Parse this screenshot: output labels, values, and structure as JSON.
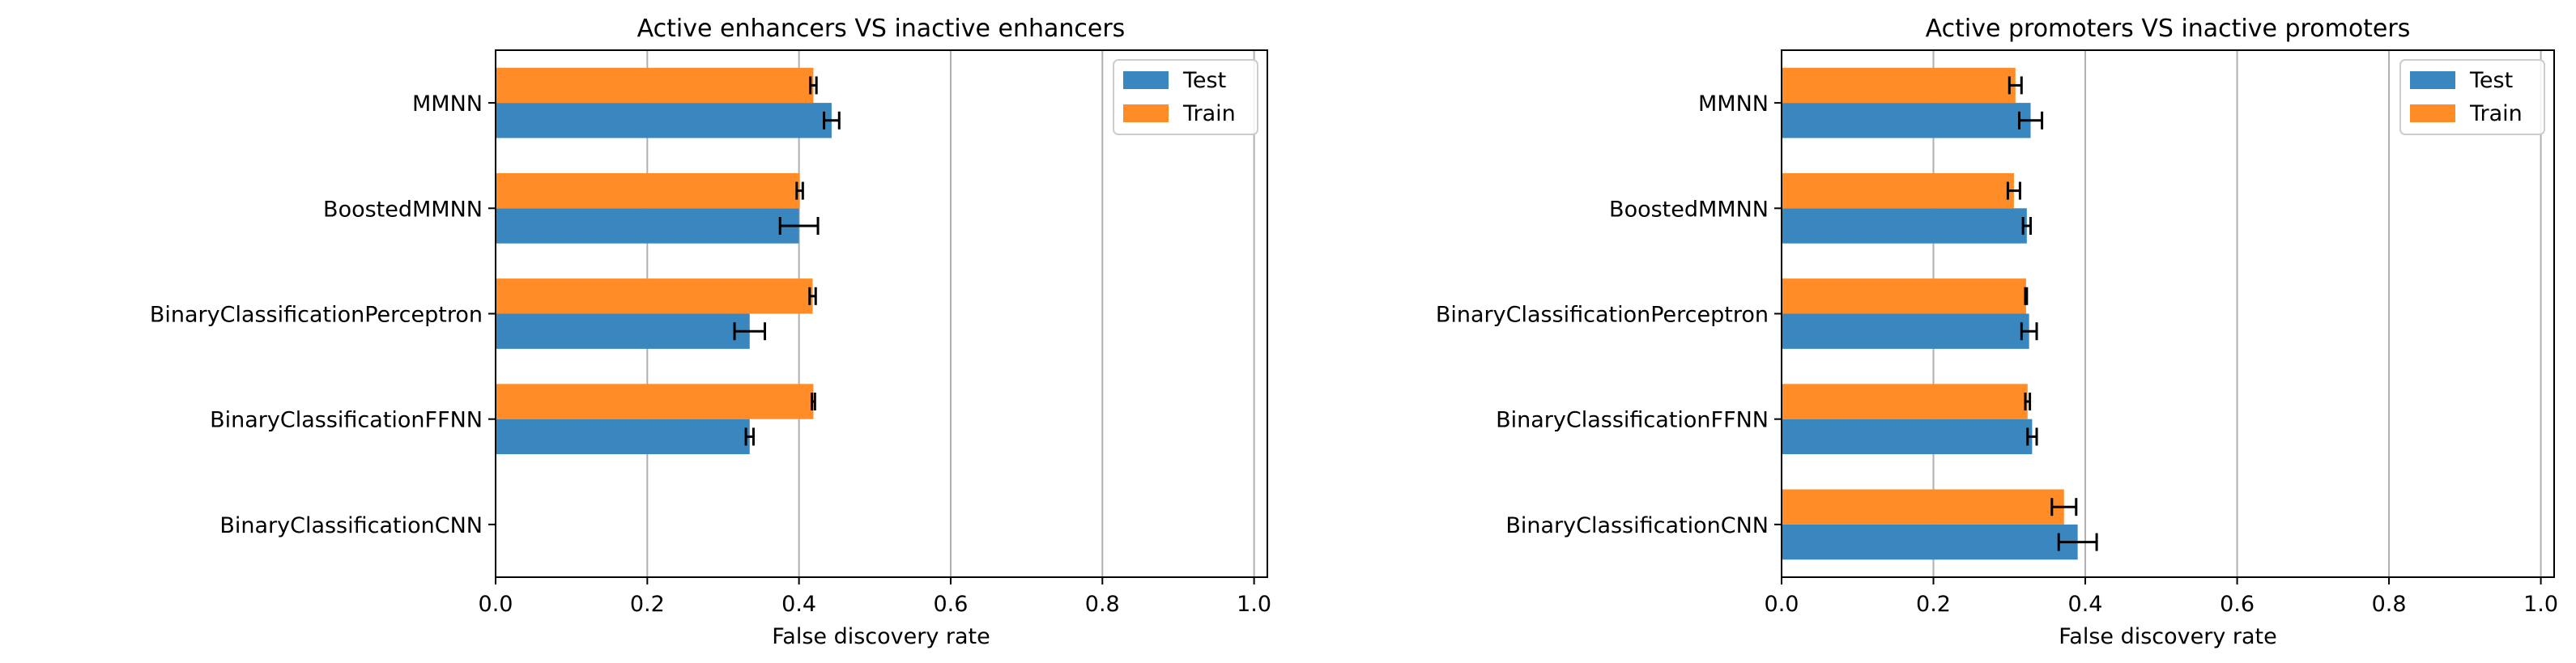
{
  "chart_data": [
    {
      "type": "bar",
      "orientation": "horizontal",
      "title": "Active enhancers VS inactive enhancers",
      "xlabel": "False discovery rate",
      "ylabel": "",
      "xlim": [
        0,
        1.0
      ],
      "xticks": [
        "0.0",
        "0.2",
        "0.4",
        "0.6",
        "0.8",
        "1.0"
      ],
      "grid": "vertical",
      "legend": "top-right",
      "categories": [
        "MMNN",
        "BoostedMMNN",
        "BinaryClassificationPerceptron",
        "BinaryClassificationFFNN",
        "BinaryClassificationCNN"
      ],
      "series": [
        {
          "name": "Test",
          "color": "#3a87bf",
          "values": [
            0.443,
            0.4,
            0.335,
            0.335,
            null
          ],
          "errors": [
            0.01,
            0.025,
            0.02,
            0.005,
            null
          ]
        },
        {
          "name": "Train",
          "color": "#ff8c26",
          "values": [
            0.419,
            0.401,
            0.418,
            0.419,
            null
          ],
          "errors": [
            0.004,
            0.004,
            0.004,
            0.002,
            null
          ]
        }
      ]
    },
    {
      "type": "bar",
      "orientation": "horizontal",
      "title": "Active promoters VS inactive promoters",
      "xlabel": "False discovery rate",
      "ylabel": "",
      "xlim": [
        0,
        1.0
      ],
      "xticks": [
        "0.0",
        "0.2",
        "0.4",
        "0.6",
        "0.8",
        "1.0"
      ],
      "grid": "vertical",
      "legend": "top-right",
      "categories": [
        "MMNN",
        "BoostedMMNN",
        "BinaryClassificationPerceptron",
        "BinaryClassificationFFNN",
        "BinaryClassificationCNN"
      ],
      "series": [
        {
          "name": "Test",
          "color": "#3a87bf",
          "values": [
            0.328,
            0.323,
            0.326,
            0.33,
            0.39
          ],
          "errors": [
            0.015,
            0.005,
            0.01,
            0.006,
            0.025
          ]
        },
        {
          "name": "Train",
          "color": "#ff8c26",
          "values": [
            0.308,
            0.306,
            0.322,
            0.324,
            0.372
          ],
          "errors": [
            0.008,
            0.008,
            0.001,
            0.003,
            0.016
          ]
        }
      ]
    }
  ]
}
